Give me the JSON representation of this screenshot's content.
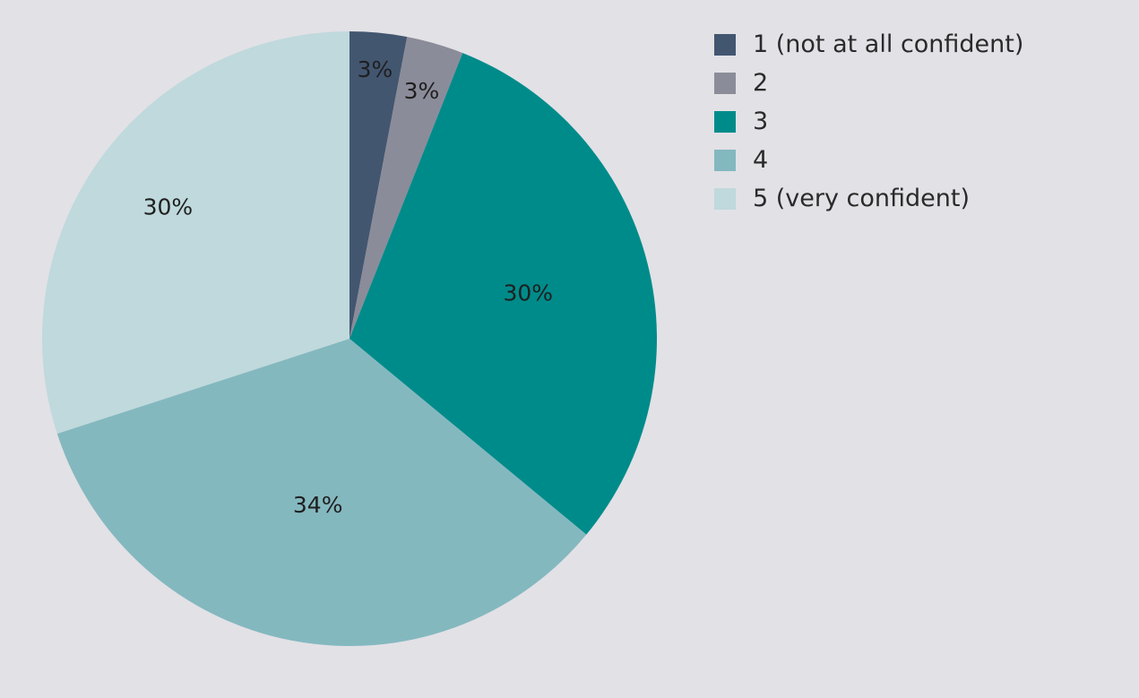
{
  "chart_data": {
    "type": "pie",
    "title": "",
    "categories": [
      "1 (not at all confident)",
      "2",
      "3",
      "4",
      "5 (very confident)"
    ],
    "values": [
      3,
      3,
      30,
      34,
      30
    ],
    "labels": [
      "3%",
      "3%",
      "30%",
      "34%",
      "30%"
    ],
    "colors": [
      "#435670",
      "#8b8c99",
      "#008b8b",
      "#84b8bf",
      "#bfd9dc"
    ],
    "start_angle_deg": 0,
    "direction": "clockwise",
    "legend_position": "top-right"
  }
}
